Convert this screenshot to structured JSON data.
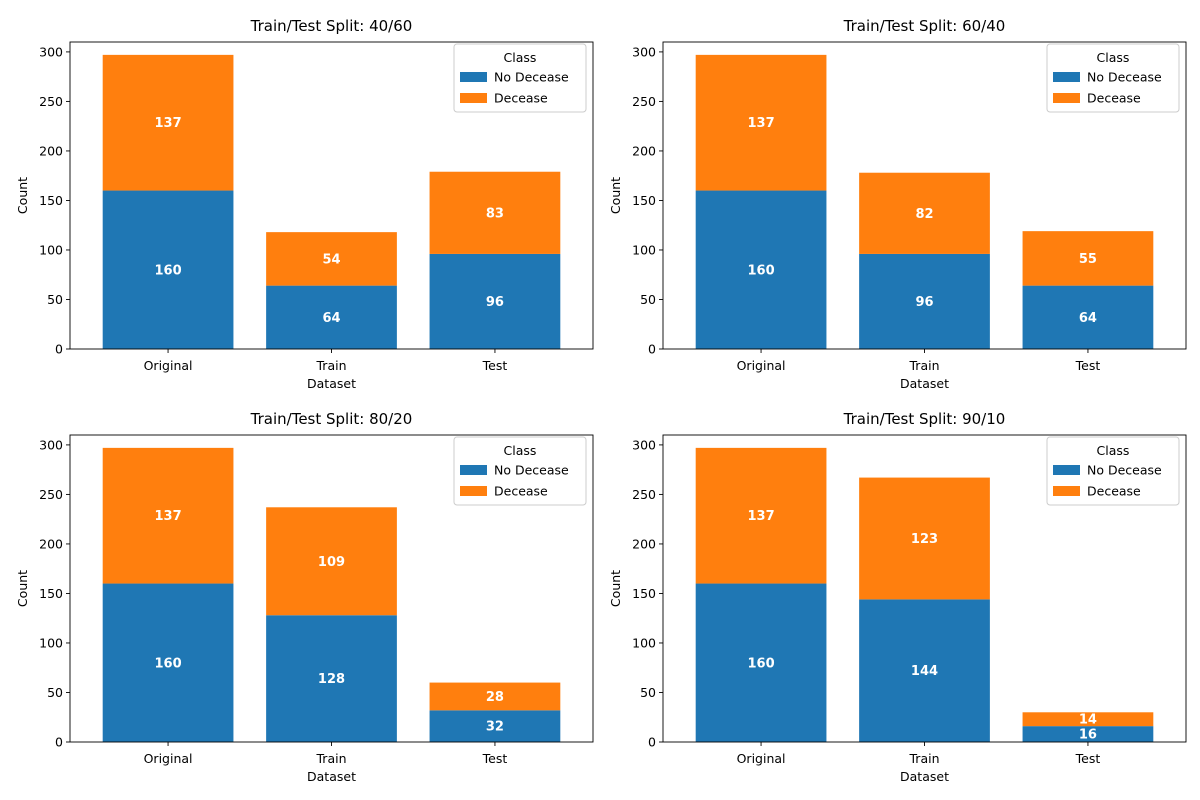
{
  "chart_data": [
    {
      "type": "bar",
      "stacked": true,
      "title": "Train/Test Split: 40/60",
      "xlabel": "Dataset",
      "ylabel": "Count",
      "categories": [
        "Original",
        "Train",
        "Test"
      ],
      "ylim": [
        0,
        310
      ],
      "yticks": [
        0,
        50,
        100,
        150,
        200,
        250,
        300
      ],
      "grid": false,
      "legend": {
        "title": "Class",
        "placement": "top-right"
      },
      "series": [
        {
          "name": "No Decease",
          "color": "#1f77b4",
          "values": [
            160,
            64,
            96
          ]
        },
        {
          "name": "Decease",
          "color": "#ff7f0e",
          "values": [
            137,
            54,
            83
          ]
        }
      ]
    },
    {
      "type": "bar",
      "stacked": true,
      "title": "Train/Test Split: 60/40",
      "xlabel": "Dataset",
      "ylabel": "Count",
      "categories": [
        "Original",
        "Train",
        "Test"
      ],
      "ylim": [
        0,
        310
      ],
      "yticks": [
        0,
        50,
        100,
        150,
        200,
        250,
        300
      ],
      "grid": false,
      "legend": {
        "title": "Class",
        "placement": "top-right"
      },
      "series": [
        {
          "name": "No Decease",
          "color": "#1f77b4",
          "values": [
            160,
            96,
            64
          ]
        },
        {
          "name": "Decease",
          "color": "#ff7f0e",
          "values": [
            137,
            82,
            55
          ]
        }
      ]
    },
    {
      "type": "bar",
      "stacked": true,
      "title": "Train/Test Split: 80/20",
      "xlabel": "Dataset",
      "ylabel": "Count",
      "categories": [
        "Original",
        "Train",
        "Test"
      ],
      "ylim": [
        0,
        310
      ],
      "yticks": [
        0,
        50,
        100,
        150,
        200,
        250,
        300
      ],
      "grid": false,
      "legend": {
        "title": "Class",
        "placement": "top-right"
      },
      "series": [
        {
          "name": "No Decease",
          "color": "#1f77b4",
          "values": [
            160,
            128,
            32
          ]
        },
        {
          "name": "Decease",
          "color": "#ff7f0e",
          "values": [
            137,
            109,
            28
          ]
        }
      ]
    },
    {
      "type": "bar",
      "stacked": true,
      "title": "Train/Test Split: 90/10",
      "xlabel": "Dataset",
      "ylabel": "Count",
      "categories": [
        "Original",
        "Train",
        "Test"
      ],
      "ylim": [
        0,
        310
      ],
      "yticks": [
        0,
        50,
        100,
        150,
        200,
        250,
        300
      ],
      "grid": false,
      "legend": {
        "title": "Class",
        "placement": "top-right"
      },
      "series": [
        {
          "name": "No Decease",
          "color": "#1f77b4",
          "values": [
            160,
            144,
            16
          ]
        },
        {
          "name": "Decease",
          "color": "#ff7f0e",
          "values": [
            137,
            123,
            14
          ]
        }
      ]
    }
  ]
}
